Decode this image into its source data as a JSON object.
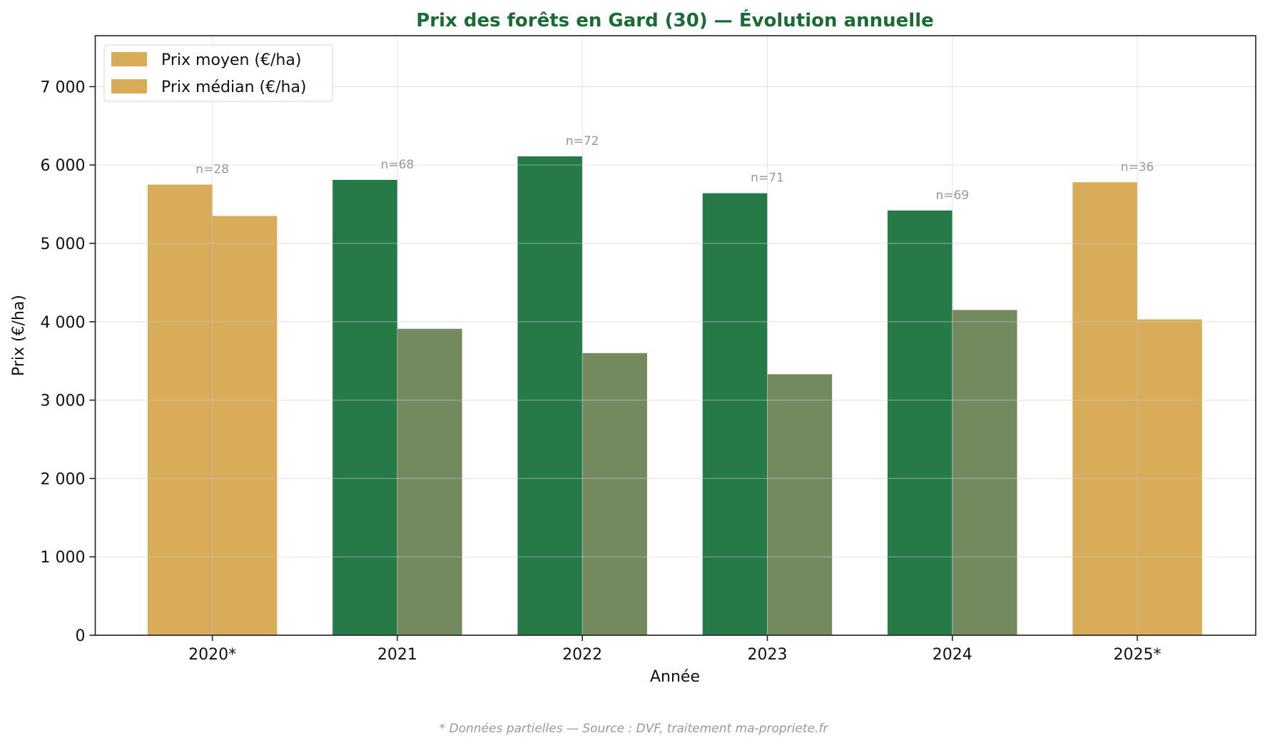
{
  "chart_data": {
    "type": "bar",
    "title": "Prix des forêts en Gard (30) — Évolution annuelle",
    "xlabel": "Année",
    "ylabel": "Prix (€/ha)",
    "categories": [
      "2020*",
      "2021",
      "2022",
      "2023",
      "2024",
      "2025*"
    ],
    "partial": [
      true,
      false,
      false,
      false,
      false,
      true
    ],
    "series": [
      {
        "name": "Prix moyen (€/ha)",
        "values": [
          5750,
          5810,
          6110,
          5640,
          5420,
          5780
        ],
        "color": "#267a48"
      },
      {
        "name": "Prix médian (€/ha)",
        "values": [
          5350,
          3910,
          3600,
          3330,
          4150,
          4030
        ],
        "color": "#728a5e"
      }
    ],
    "partial_color": "#d9ac5a",
    "counts": [
      "n=28",
      "n=68",
      "n=72",
      "n=71",
      "n=69",
      "n=36"
    ],
    "yticks": [
      0,
      1000,
      2000,
      3000,
      4000,
      5000,
      6000,
      7000
    ],
    "ytick_labels": [
      "0",
      "1 000",
      "2 000",
      "3 000",
      "4 000",
      "5 000",
      "6 000",
      "7 000"
    ],
    "ylim": [
      0,
      7650
    ],
    "grid": true,
    "legend_placement": "top-left",
    "legend_swatch_color": "#d9ac5a",
    "title_color": "#1a6b35"
  },
  "footer": "* Données partielles — Source : DVF, traitement ma-propriete.fr"
}
